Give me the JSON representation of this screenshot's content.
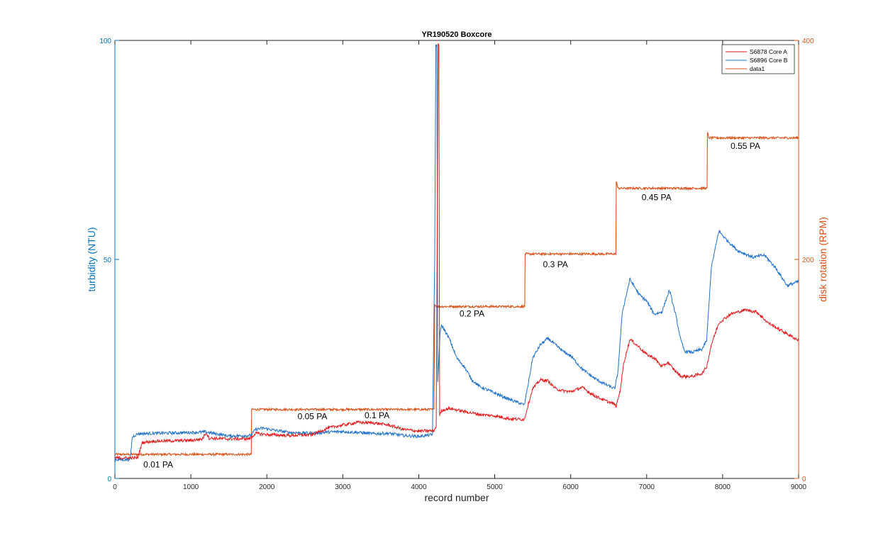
{
  "chart_data": {
    "type": "line",
    "title": "YR190520 Boxcore",
    "xlabel": "record number",
    "ylabel_left": "turbidity (NTU)",
    "ylabel_right": "disk rotation (RPM)",
    "xlim": [
      0,
      9000
    ],
    "ylim_left": [
      0,
      100
    ],
    "ylim_right": [
      0,
      400
    ],
    "x_ticks": [
      "0",
      "1000",
      "2000",
      "3000",
      "4000",
      "5000",
      "6000",
      "7000",
      "8000",
      "9000"
    ],
    "y_left_ticks": [
      "0",
      "50",
      "100"
    ],
    "y_right_ticks": [
      "0",
      "200",
      "400"
    ],
    "grid": false,
    "legend_position": "top-right",
    "colors": {
      "core_a": "#e31a1c",
      "core_b": "#2171c7",
      "data1": "#d95319",
      "left_axis": "#0072bd",
      "right_axis": "#d95319"
    },
    "legend": [
      "S6878 Core A",
      "S6896 Core B",
      "data1"
    ],
    "series": [
      {
        "name": "S6878 Core A",
        "axis": "left",
        "points": [
          [
            0,
            4.7
          ],
          [
            300,
            4.7
          ],
          [
            360,
            8.2
          ],
          [
            500,
            8.5
          ],
          [
            800,
            8.6
          ],
          [
            1000,
            8.7
          ],
          [
            1150,
            9.0
          ],
          [
            1200,
            10.5
          ],
          [
            1240,
            9.2
          ],
          [
            1500,
            9.0
          ],
          [
            1780,
            9.1
          ],
          [
            1850,
            10.3
          ],
          [
            2000,
            10.0
          ],
          [
            2300,
            9.8
          ],
          [
            2600,
            10.0
          ],
          [
            2800,
            11.5
          ],
          [
            3000,
            12.2
          ],
          [
            3200,
            12.8
          ],
          [
            3400,
            12.7
          ],
          [
            3600,
            12.2
          ],
          [
            3800,
            11.2
          ],
          [
            4000,
            10.8
          ],
          [
            4200,
            10.9
          ],
          [
            4230,
            12.0
          ],
          [
            4255,
            99
          ],
          [
            4265,
            99
          ],
          [
            4275,
            14.5
          ],
          [
            4300,
            15.5
          ],
          [
            4400,
            16.0
          ],
          [
            4600,
            15.3
          ],
          [
            4800,
            14.6
          ],
          [
            5000,
            14.3
          ],
          [
            5200,
            13.6
          ],
          [
            5390,
            13.5
          ],
          [
            5450,
            17.5
          ],
          [
            5500,
            20.5
          ],
          [
            5600,
            22.5
          ],
          [
            5700,
            22.3
          ],
          [
            5800,
            20.5
          ],
          [
            5900,
            20.0
          ],
          [
            6000,
            19.8
          ],
          [
            6150,
            20.8
          ],
          [
            6300,
            19.0
          ],
          [
            6450,
            17.8
          ],
          [
            6570,
            17.0
          ],
          [
            6600,
            16.5
          ],
          [
            6650,
            20.0
          ],
          [
            6700,
            26.5
          ],
          [
            6780,
            31.8
          ],
          [
            6900,
            30.0
          ],
          [
            7000,
            28.3
          ],
          [
            7100,
            27.5
          ],
          [
            7200,
            25.5
          ],
          [
            7280,
            26.5
          ],
          [
            7350,
            25.0
          ],
          [
            7450,
            23.3
          ],
          [
            7600,
            23.3
          ],
          [
            7730,
            24.0
          ],
          [
            7790,
            25.5
          ],
          [
            7850,
            30.5
          ],
          [
            7950,
            35.5
          ],
          [
            8100,
            37.5
          ],
          [
            8300,
            38.5
          ],
          [
            8450,
            38.0
          ],
          [
            8600,
            35.5
          ],
          [
            8750,
            34.0
          ],
          [
            8900,
            32.5
          ],
          [
            9000,
            31.5
          ]
        ]
      },
      {
        "name": "S6896 Core B",
        "axis": "left",
        "points": [
          [
            0,
            4.3
          ],
          [
            200,
            4.3
          ],
          [
            230,
            9.5
          ],
          [
            300,
            10.2
          ],
          [
            500,
            10.3
          ],
          [
            800,
            10.4
          ],
          [
            1000,
            10.5
          ],
          [
            1200,
            10.6
          ],
          [
            1300,
            10.3
          ],
          [
            1500,
            9.7
          ],
          [
            1790,
            9.8
          ],
          [
            1850,
            11.2
          ],
          [
            1950,
            11.5
          ],
          [
            2100,
            11.0
          ],
          [
            2300,
            10.5
          ],
          [
            2600,
            10.3
          ],
          [
            2800,
            10.6
          ],
          [
            3000,
            10.7
          ],
          [
            3200,
            10.5
          ],
          [
            3400,
            10.2
          ],
          [
            3600,
            10.3
          ],
          [
            3800,
            9.8
          ],
          [
            4000,
            9.6
          ],
          [
            4180,
            10.0
          ],
          [
            4210,
            50
          ],
          [
            4225,
            99
          ],
          [
            4238,
            99
          ],
          [
            4250,
            22
          ],
          [
            4280,
            33
          ],
          [
            4300,
            35
          ],
          [
            4400,
            32.0
          ],
          [
            4500,
            27.5
          ],
          [
            4600,
            25.5
          ],
          [
            4700,
            22.5
          ],
          [
            4800,
            21.0
          ],
          [
            5000,
            19.5
          ],
          [
            5200,
            18.0
          ],
          [
            5390,
            16.8
          ],
          [
            5450,
            22.5
          ],
          [
            5500,
            27.5
          ],
          [
            5600,
            30.5
          ],
          [
            5700,
            32.0
          ],
          [
            5800,
            30.5
          ],
          [
            5900,
            29.0
          ],
          [
            6000,
            28.0
          ],
          [
            6150,
            25.0
          ],
          [
            6300,
            23.0
          ],
          [
            6450,
            21.5
          ],
          [
            6580,
            20.5
          ],
          [
            6620,
            24.0
          ],
          [
            6680,
            38.0
          ],
          [
            6780,
            45.5
          ],
          [
            6900,
            42.0
          ],
          [
            7000,
            40.5
          ],
          [
            7100,
            37.5
          ],
          [
            7200,
            38.0
          ],
          [
            7300,
            43.0
          ],
          [
            7380,
            37.5
          ],
          [
            7450,
            31.5
          ],
          [
            7500,
            29.0
          ],
          [
            7600,
            28.8
          ],
          [
            7730,
            29.5
          ],
          [
            7790,
            31.5
          ],
          [
            7850,
            48.0
          ],
          [
            7950,
            56.5
          ],
          [
            8050,
            54.5
          ],
          [
            8200,
            52.0
          ],
          [
            8400,
            50.5
          ],
          [
            8550,
            51.0
          ],
          [
            8700,
            48.0
          ],
          [
            8850,
            44.0
          ],
          [
            9000,
            45.0
          ]
        ]
      },
      {
        "name": "data1",
        "axis": "right",
        "noise": 1.0,
        "points": [
          [
            0,
            22
          ],
          [
            1795,
            22
          ],
          [
            1800,
            63
          ],
          [
            4200,
            63
          ],
          [
            4210,
            160
          ],
          [
            4230,
            157
          ],
          [
            5395,
            157
          ],
          [
            5400,
            205
          ],
          [
            6595,
            205
          ],
          [
            6600,
            272
          ],
          [
            6620,
            265
          ],
          [
            7795,
            265
          ],
          [
            7800,
            316
          ],
          [
            7820,
            311
          ],
          [
            9000,
            311
          ]
        ]
      }
    ],
    "annotations": [
      {
        "text": "0.01 PA",
        "x": 570,
        "y_right": 10
      },
      {
        "text": "0.05 PA",
        "x": 2600,
        "y_right": 54
      },
      {
        "text": "0.1 PA",
        "x": 3450,
        "y_right": 55
      },
      {
        "text": "0.2 PA",
        "x": 4700,
        "y_right": 148
      },
      {
        "text": "0.3 PA",
        "x": 5800,
        "y_right": 193
      },
      {
        "text": "0.45 PA",
        "x": 7130,
        "y_right": 254
      },
      {
        "text": "0.55 PA",
        "x": 8300,
        "y_right": 301
      }
    ]
  }
}
